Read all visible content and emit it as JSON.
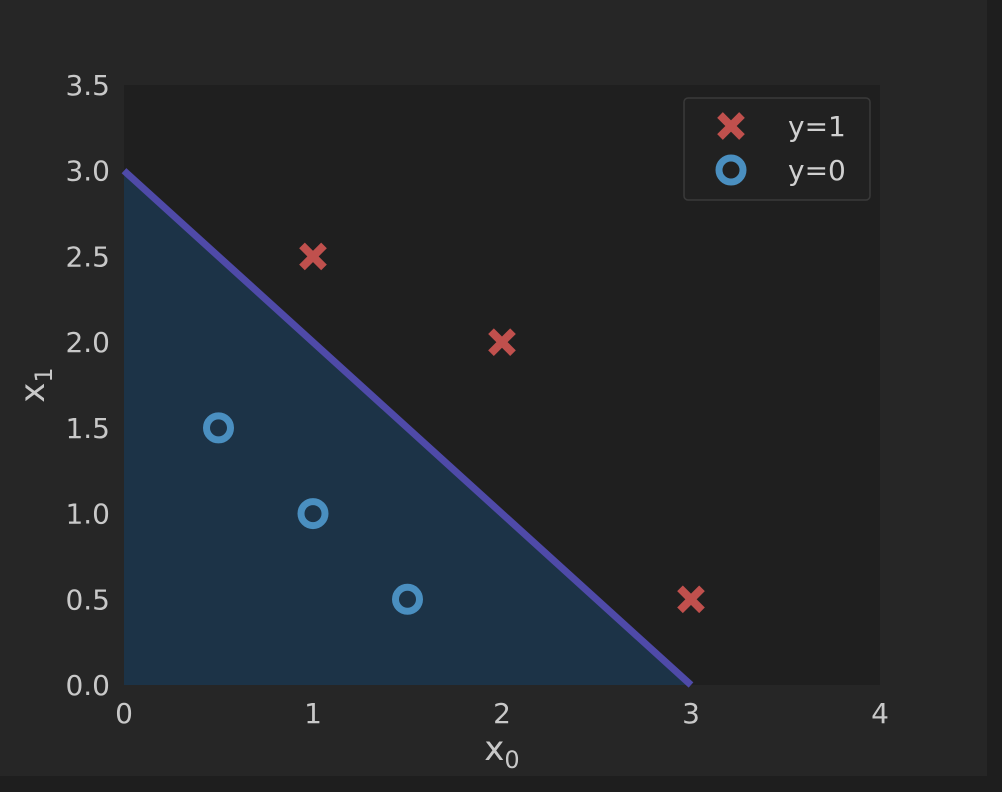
{
  "chart_data": {
    "type": "scatter",
    "xlabel": "x",
    "xlabel_sub": "0",
    "ylabel": "x",
    "ylabel_sub": "1",
    "xlim": [
      0,
      4
    ],
    "ylim": [
      0,
      3.5
    ],
    "xticks": [
      "0",
      "1",
      "2",
      "3",
      "4"
    ],
    "yticks": [
      "0.0",
      "0.5",
      "1.0",
      "1.5",
      "2.0",
      "2.5",
      "3.0",
      "3.5"
    ],
    "grid": false,
    "legend_position": "top-right",
    "series": [
      {
        "name": "y=1",
        "marker": "x",
        "color": "#c0504d",
        "points": [
          [
            1,
            2.5
          ],
          [
            2,
            2.0
          ],
          [
            3,
            0.5
          ]
        ]
      },
      {
        "name": "y=0",
        "marker": "o",
        "color": "#4a8fc0",
        "points": [
          [
            0.5,
            1.5
          ],
          [
            1,
            1.0
          ],
          [
            1.5,
            0.5
          ]
        ]
      }
    ],
    "decision_boundary": {
      "line": [
        [
          0,
          3
        ],
        [
          3,
          0
        ]
      ],
      "line_color": "#4f4aa8",
      "fill_color": "#1c3347",
      "fill_region": "below"
    },
    "colors": {
      "plot_background": "#1f1f1f",
      "figure_background": "#262626",
      "text": "#c8c8c8"
    }
  }
}
